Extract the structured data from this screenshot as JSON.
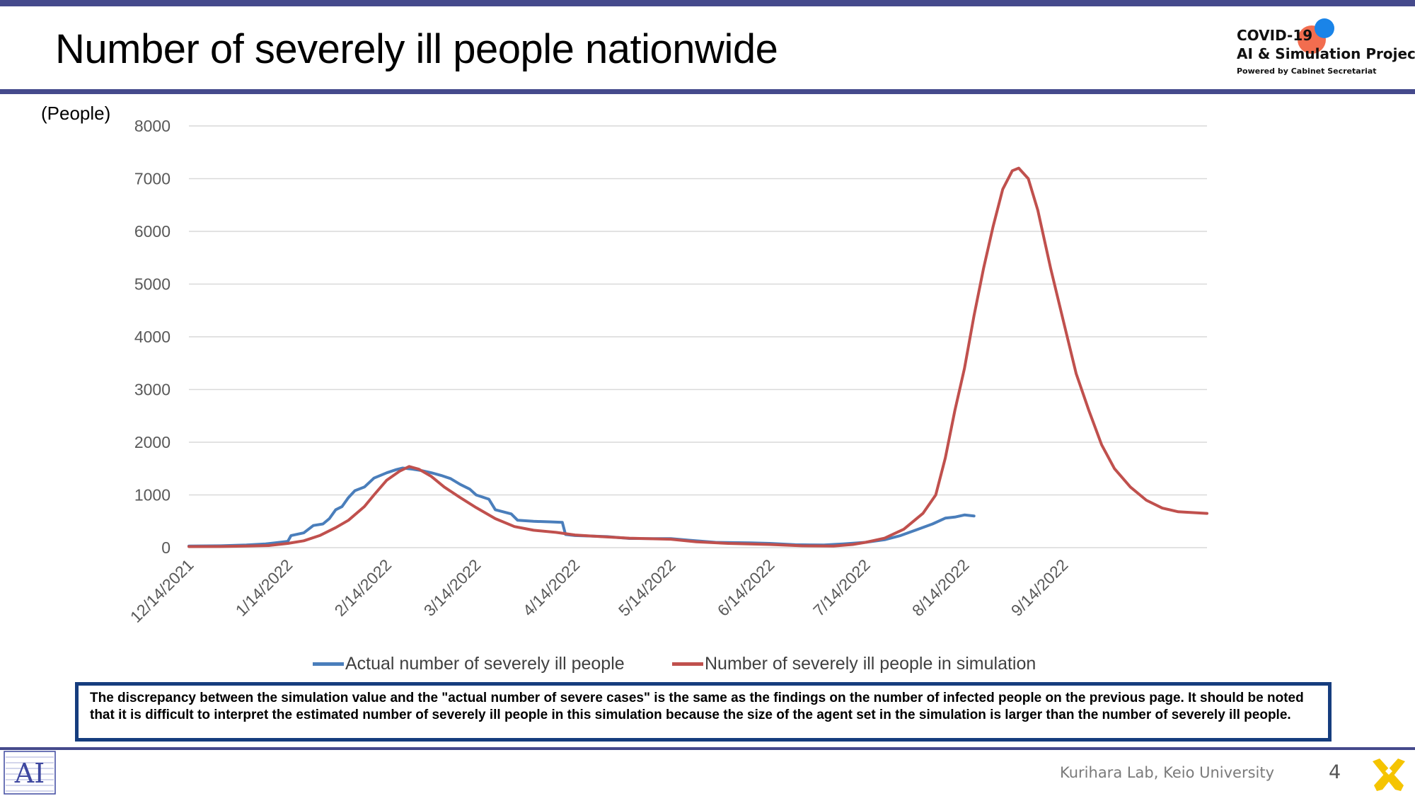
{
  "slide": {
    "title": "Number of severely ill people nationwide",
    "note": "The discrepancy between the simulation value and the \"actual number of severe cases\" is the same as the findings on the number of infected people on the previous page. It should be noted that it is difficult to interpret the estimated number of severely ill people in this simulation because the size of the agent set in the simulation is larger than the number of severely ill people.",
    "footer": "Kurihara Lab, Keio University",
    "page_number": "4"
  },
  "logo": {
    "line1": "COVID-19",
    "line2": "AI & Simulation Project",
    "line3": "Powered by Cabinet Secretariat"
  },
  "lab_logo_text": "AI",
  "colors": {
    "accent_bar": "#454a8c",
    "note_border": "#163d7e",
    "actual": "#4a7ebb",
    "simulation": "#c0504d",
    "keio_yellow": "#f5c400"
  },
  "chart_data": {
    "type": "line",
    "unit_label": "(People)",
    "ylim": [
      0,
      8000
    ],
    "yticks": [
      "0",
      "1000",
      "2000",
      "3000",
      "4000",
      "5000",
      "6000",
      "7000",
      "8000"
    ],
    "x_tick_labels": [
      "12/14/2021",
      "1/14/2022",
      "2/14/2022",
      "3/14/2022",
      "4/14/2022",
      "5/14/2022",
      "6/14/2022",
      "7/14/2022",
      "8/14/2022",
      "9/14/2022"
    ],
    "x_tick_dates": [
      "2021-12-14",
      "2022-01-14",
      "2022-02-14",
      "2022-03-14",
      "2022-04-14",
      "2022-05-14",
      "2022-06-14",
      "2022-07-14",
      "2022-08-14",
      "2022-09-14"
    ],
    "x_range": [
      "2021-12-14",
      "2022-10-29"
    ],
    "grid": true,
    "legend_position": "bottom",
    "series": [
      {
        "name": "Actual number of severely ill people",
        "color": "#4a7ebb",
        "points": [
          [
            "2021-12-14",
            30
          ],
          [
            "2021-12-24",
            35
          ],
          [
            "2022-01-01",
            50
          ],
          [
            "2022-01-07",
            70
          ],
          [
            "2022-01-10",
            90
          ],
          [
            "2022-01-14",
            120
          ],
          [
            "2022-01-15",
            230
          ],
          [
            "2022-01-19",
            280
          ],
          [
            "2022-01-22",
            420
          ],
          [
            "2022-01-25",
            450
          ],
          [
            "2022-01-27",
            550
          ],
          [
            "2022-01-29",
            720
          ],
          [
            "2022-01-31",
            780
          ],
          [
            "2022-02-02",
            950
          ],
          [
            "2022-02-04",
            1080
          ],
          [
            "2022-02-07",
            1150
          ],
          [
            "2022-02-10",
            1320
          ],
          [
            "2022-02-14",
            1420
          ],
          [
            "2022-02-17",
            1480
          ],
          [
            "2022-02-19",
            1510
          ],
          [
            "2022-02-22",
            1490
          ],
          [
            "2022-02-25",
            1460
          ],
          [
            "2022-02-28",
            1420
          ],
          [
            "2022-03-03",
            1370
          ],
          [
            "2022-03-06",
            1310
          ],
          [
            "2022-03-09",
            1200
          ],
          [
            "2022-03-12",
            1110
          ],
          [
            "2022-03-14",
            1000
          ],
          [
            "2022-03-18",
            920
          ],
          [
            "2022-03-20",
            720
          ],
          [
            "2022-03-25",
            640
          ],
          [
            "2022-03-27",
            520
          ],
          [
            "2022-04-01",
            500
          ],
          [
            "2022-04-06",
            490
          ],
          [
            "2022-04-10",
            480
          ],
          [
            "2022-04-11",
            250
          ],
          [
            "2022-04-14",
            230
          ],
          [
            "2022-04-24",
            210
          ],
          [
            "2022-05-01",
            175
          ],
          [
            "2022-05-14",
            170
          ],
          [
            "2022-05-20",
            140
          ],
          [
            "2022-05-28",
            100
          ],
          [
            "2022-06-08",
            90
          ],
          [
            "2022-06-14",
            80
          ],
          [
            "2022-06-22",
            55
          ],
          [
            "2022-07-01",
            50
          ],
          [
            "2022-07-07",
            70
          ],
          [
            "2022-07-14",
            100
          ],
          [
            "2022-07-20",
            150
          ],
          [
            "2022-07-25",
            230
          ],
          [
            "2022-07-30",
            340
          ],
          [
            "2022-08-04",
            450
          ],
          [
            "2022-08-08",
            560
          ],
          [
            "2022-08-11",
            580
          ],
          [
            "2022-08-14",
            620
          ],
          [
            "2022-08-17",
            600
          ]
        ]
      },
      {
        "name": "Number of severely ill people in simulation",
        "color": "#c0504d",
        "points": [
          [
            "2021-12-14",
            20
          ],
          [
            "2021-12-24",
            22
          ],
          [
            "2022-01-01",
            30
          ],
          [
            "2022-01-08",
            40
          ],
          [
            "2022-01-14",
            80
          ],
          [
            "2022-01-19",
            130
          ],
          [
            "2022-01-24",
            230
          ],
          [
            "2022-01-29",
            380
          ],
          [
            "2022-02-02",
            520
          ],
          [
            "2022-02-07",
            780
          ],
          [
            "2022-02-10",
            1000
          ],
          [
            "2022-02-14",
            1280
          ],
          [
            "2022-02-18",
            1450
          ],
          [
            "2022-02-21",
            1540
          ],
          [
            "2022-02-24",
            1490
          ],
          [
            "2022-02-28",
            1350
          ],
          [
            "2022-03-04",
            1150
          ],
          [
            "2022-03-09",
            950
          ],
          [
            "2022-03-14",
            760
          ],
          [
            "2022-03-20",
            550
          ],
          [
            "2022-03-26",
            400
          ],
          [
            "2022-04-01",
            330
          ],
          [
            "2022-04-08",
            290
          ],
          [
            "2022-04-14",
            240
          ],
          [
            "2022-04-22",
            210
          ],
          [
            "2022-05-01",
            180
          ],
          [
            "2022-05-14",
            160
          ],
          [
            "2022-05-22",
            110
          ],
          [
            "2022-06-01",
            80
          ],
          [
            "2022-06-14",
            60
          ],
          [
            "2022-06-24",
            35
          ],
          [
            "2022-07-04",
            30
          ],
          [
            "2022-07-10",
            60
          ],
          [
            "2022-07-14",
            100
          ],
          [
            "2022-07-20",
            180
          ],
          [
            "2022-07-26",
            350
          ],
          [
            "2022-08-01",
            650
          ],
          [
            "2022-08-05",
            1000
          ],
          [
            "2022-08-08",
            1700
          ],
          [
            "2022-08-11",
            2600
          ],
          [
            "2022-08-14",
            3400
          ],
          [
            "2022-08-17",
            4400
          ],
          [
            "2022-08-20",
            5300
          ],
          [
            "2022-08-23",
            6100
          ],
          [
            "2022-08-26",
            6800
          ],
          [
            "2022-08-29",
            7150
          ],
          [
            "2022-08-31",
            7200
          ],
          [
            "2022-09-03",
            7000
          ],
          [
            "2022-09-06",
            6400
          ],
          [
            "2022-09-10",
            5300
          ],
          [
            "2022-09-14",
            4300
          ],
          [
            "2022-09-18",
            3300
          ],
          [
            "2022-09-22",
            2600
          ],
          [
            "2022-09-26",
            1950
          ],
          [
            "2022-09-30",
            1500
          ],
          [
            "2022-10-05",
            1150
          ],
          [
            "2022-10-10",
            900
          ],
          [
            "2022-10-15",
            750
          ],
          [
            "2022-10-20",
            680
          ],
          [
            "2022-10-29",
            650
          ]
        ]
      }
    ]
  }
}
